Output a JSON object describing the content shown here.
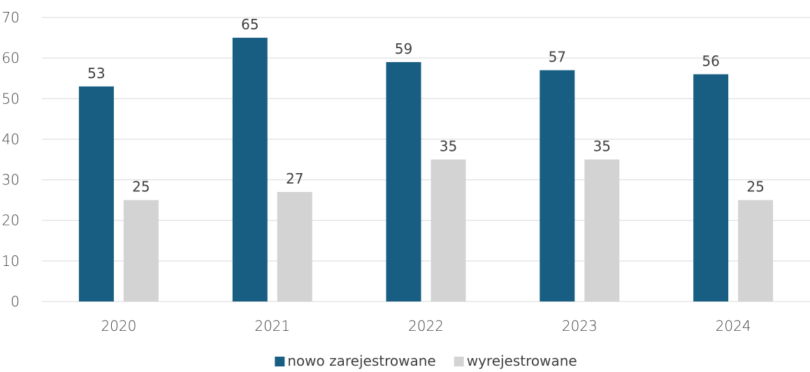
{
  "chart_data": {
    "type": "bar",
    "title": "",
    "xlabel": "",
    "ylabel": "",
    "categories": [
      "2020",
      "2021",
      "2022",
      "2023",
      "2024"
    ],
    "series": [
      {
        "name": "nowo zarejestrowane",
        "values": [
          53,
          65,
          59,
          57,
          56
        ],
        "color": "#175E82"
      },
      {
        "name": "wyrejestrowane",
        "values": [
          25,
          27,
          35,
          35,
          25
        ],
        "color": "#D3D3D3"
      }
    ],
    "ylim": [
      0,
      70
    ],
    "yticks": [
      0,
      10,
      20,
      30,
      40,
      50,
      60,
      70
    ],
    "grid": true,
    "legend_position": "bottom",
    "data_labels": true
  }
}
